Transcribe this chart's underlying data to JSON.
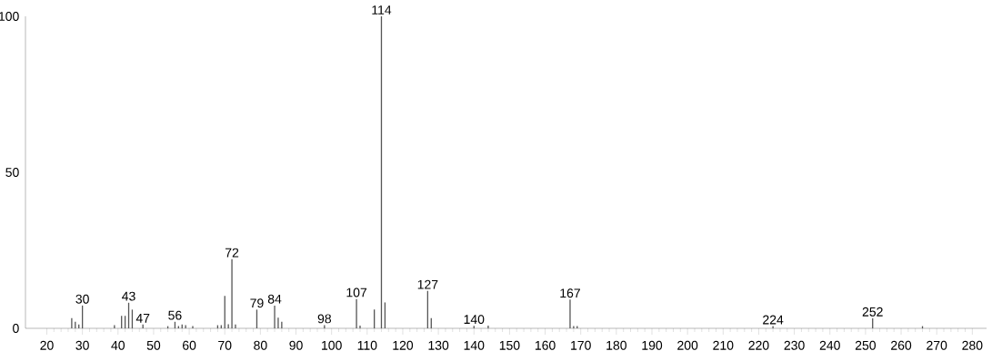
{
  "chart_data": {
    "type": "bar",
    "color": "#555555",
    "x": [
      27,
      28,
      29,
      30,
      39,
      41,
      42,
      43,
      44,
      47,
      54,
      56,
      57,
      58,
      59,
      61,
      68,
      69,
      70,
      71,
      72,
      73,
      79,
      84,
      85,
      86,
      98,
      107,
      108,
      112,
      114,
      115,
      127,
      128,
      140,
      144,
      167,
      168,
      169,
      224,
      252,
      266
    ],
    "values": [
      3.3,
      2.1,
      1.2,
      7.3,
      1.0,
      4.0,
      4.0,
      8.2,
      6.0,
      1.2,
      0.7,
      2.1,
      0.7,
      1.2,
      1.0,
      0.7,
      1.0,
      1.0,
      10.4,
      1.3,
      22.2,
      1.2,
      6.0,
      7.3,
      3.4,
      2.1,
      1.0,
      9.4,
      0.9,
      6.0,
      100,
      8.3,
      12.0,
      3.3,
      0.8,
      0.9,
      9.2,
      0.7,
      0.7,
      0.7,
      3.2,
      0.7
    ],
    "annotations": [
      {
        "text": "30",
        "x": 30,
        "y": 7.3
      },
      {
        "text": "43",
        "x": 43,
        "y": 8.2
      },
      {
        "text": "47",
        "x": 47,
        "y": 1.2
      },
      {
        "text": "56",
        "x": 56,
        "y": 2.1
      },
      {
        "text": "72",
        "x": 72,
        "y": 22.2
      },
      {
        "text": "79",
        "x": 79,
        "y": 6.0
      },
      {
        "text": "84",
        "x": 84,
        "y": 7.3
      },
      {
        "text": "98",
        "x": 98,
        "y": 1.0
      },
      {
        "text": "107",
        "x": 107,
        "y": 9.4
      },
      {
        "text": "114",
        "x": 114,
        "y": 100
      },
      {
        "text": "127",
        "x": 127,
        "y": 12.0
      },
      {
        "text": "140",
        "x": 140,
        "y": 0.8
      },
      {
        "text": "167",
        "x": 167,
        "y": 9.2
      },
      {
        "text": "224",
        "x": 224,
        "y": 0.7
      },
      {
        "text": "252",
        "x": 252,
        "y": 3.2
      }
    ],
    "xlim": [
      14,
      284
    ],
    "ylim": [
      0,
      100
    ],
    "xticks": [
      20,
      30,
      40,
      50,
      60,
      70,
      80,
      90,
      100,
      110,
      120,
      130,
      140,
      150,
      160,
      170,
      180,
      190,
      200,
      210,
      220,
      230,
      240,
      250,
      260,
      270,
      280
    ],
    "yticks": [
      0,
      50,
      100
    ],
    "grid": false
  }
}
